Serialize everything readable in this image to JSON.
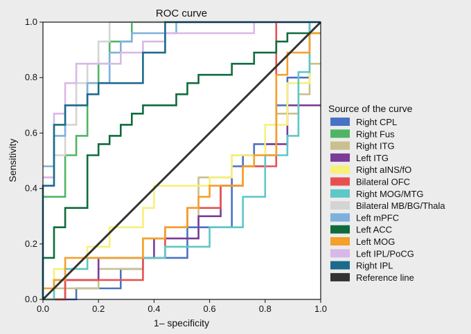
{
  "chart_data": {
    "type": "line",
    "title": "ROC curve",
    "xlabel": "1– specificity",
    "ylabel": "Sensitivity",
    "xlim": [
      0,
      1
    ],
    "ylim": [
      0,
      1
    ],
    "xticks": [
      "0.0",
      "0.2",
      "0.4",
      "0.6",
      "0.8",
      "1.0"
    ],
    "yticks": [
      "0.0",
      "0.2",
      "0.4",
      "0.6",
      "0.8",
      "1.0"
    ],
    "grid": false,
    "legend_title": "Source of the curve",
    "legend_position": "right",
    "series": [
      {
        "name": "Right CPL",
        "color": "#4a72c4",
        "points": [
          [
            0,
            0
          ],
          [
            0.12,
            0
          ],
          [
            0.12,
            0.04
          ],
          [
            0.28,
            0.04
          ],
          [
            0.28,
            0.11
          ],
          [
            0.36,
            0.11
          ],
          [
            0.36,
            0.15
          ],
          [
            0.52,
            0.15
          ],
          [
            0.52,
            0.26
          ],
          [
            0.68,
            0.26
          ],
          [
            0.68,
            0.48
          ],
          [
            0.72,
            0.48
          ],
          [
            0.72,
            0.52
          ],
          [
            0.76,
            0.52
          ],
          [
            0.76,
            0.56
          ],
          [
            0.84,
            0.56
          ],
          [
            0.84,
            0.7
          ],
          [
            0.88,
            0.7
          ],
          [
            0.88,
            0.8
          ],
          [
            0.96,
            0.8
          ],
          [
            0.96,
            1
          ],
          [
            1,
            1
          ]
        ]
      },
      {
        "name": "Right Fus",
        "color": "#4fb563",
        "points": [
          [
            0,
            0.37
          ],
          [
            0.08,
            0.37
          ],
          [
            0.08,
            0.52
          ],
          [
            0.12,
            0.52
          ],
          [
            0.12,
            0.59
          ],
          [
            0.16,
            0.59
          ],
          [
            0.16,
            0.78
          ],
          [
            0.2,
            0.78
          ],
          [
            0.2,
            0.85
          ],
          [
            0.24,
            0.85
          ],
          [
            0.24,
            0.93
          ],
          [
            0.32,
            0.93
          ],
          [
            0.32,
            1
          ],
          [
            1,
            1
          ]
        ]
      },
      {
        "name": "Right ITG",
        "color": "#c9c08e",
        "points": [
          [
            0,
            0
          ],
          [
            0.04,
            0
          ],
          [
            0.04,
            0.04
          ],
          [
            0.2,
            0.04
          ],
          [
            0.2,
            0.11
          ],
          [
            0.36,
            0.11
          ],
          [
            0.36,
            0.22
          ],
          [
            0.56,
            0.22
          ],
          [
            0.56,
            0.44
          ],
          [
            0.68,
            0.44
          ],
          [
            0.68,
            0.52
          ],
          [
            0.84,
            0.52
          ],
          [
            0.84,
            0.67
          ],
          [
            0.92,
            0.67
          ],
          [
            0.92,
            0.74
          ],
          [
            0.96,
            0.74
          ],
          [
            0.96,
            0.85
          ],
          [
            1,
            0.85
          ]
        ]
      },
      {
        "name": "Left ITG",
        "color": "#7b3c98",
        "points": [
          [
            0,
            0
          ],
          [
            0.08,
            0
          ],
          [
            0.08,
            0.07
          ],
          [
            0.2,
            0.07
          ],
          [
            0.2,
            0.15
          ],
          [
            0.4,
            0.15
          ],
          [
            0.4,
            0.22
          ],
          [
            0.56,
            0.22
          ],
          [
            0.56,
            0.3
          ],
          [
            0.64,
            0.3
          ],
          [
            0.64,
            0.41
          ],
          [
            0.72,
            0.41
          ],
          [
            0.72,
            0.48
          ],
          [
            0.8,
            0.48
          ],
          [
            0.8,
            0.56
          ],
          [
            0.88,
            0.56
          ],
          [
            0.88,
            0.7
          ],
          [
            1,
            0.7
          ]
        ]
      },
      {
        "name": "Right aINS/fO",
        "color": "#f7f07a",
        "points": [
          [
            0,
            0
          ],
          [
            0.04,
            0
          ],
          [
            0.04,
            0.11
          ],
          [
            0.16,
            0.11
          ],
          [
            0.16,
            0.19
          ],
          [
            0.24,
            0.19
          ],
          [
            0.24,
            0.26
          ],
          [
            0.36,
            0.26
          ],
          [
            0.36,
            0.33
          ],
          [
            0.4,
            0.33
          ],
          [
            0.4,
            0.41
          ],
          [
            0.6,
            0.41
          ],
          [
            0.6,
            0.44
          ],
          [
            0.68,
            0.44
          ],
          [
            0.68,
            0.52
          ],
          [
            0.8,
            0.52
          ],
          [
            0.8,
            0.63
          ],
          [
            0.88,
            0.63
          ],
          [
            0.88,
            0.78
          ],
          [
            0.96,
            0.78
          ],
          [
            0.96,
            0.96
          ],
          [
            1,
            0.96
          ]
        ]
      },
      {
        "name": "Bilateral OFC",
        "color": "#e85050",
        "points": [
          [
            0,
            0
          ],
          [
            0.08,
            0
          ],
          [
            0.08,
            0.07
          ],
          [
            0.36,
            0.07
          ],
          [
            0.36,
            0.15
          ],
          [
            0.44,
            0.15
          ],
          [
            0.44,
            0.26
          ],
          [
            0.52,
            0.26
          ],
          [
            0.52,
            0.33
          ],
          [
            0.64,
            0.33
          ],
          [
            0.64,
            0.41
          ],
          [
            0.72,
            0.41
          ],
          [
            0.72,
            0.48
          ],
          [
            0.84,
            0.48
          ],
          [
            0.84,
            1
          ],
          [
            1,
            1
          ]
        ]
      },
      {
        "name": "Right MOG/MTG",
        "color": "#5ec7c7",
        "points": [
          [
            0,
            0
          ],
          [
            0.04,
            0
          ],
          [
            0.04,
            0.07
          ],
          [
            0.08,
            0.07
          ],
          [
            0.08,
            0.11
          ],
          [
            0.16,
            0.11
          ],
          [
            0.16,
            0.15
          ],
          [
            0.44,
            0.15
          ],
          [
            0.44,
            0.19
          ],
          [
            0.6,
            0.19
          ],
          [
            0.6,
            0.26
          ],
          [
            0.72,
            0.26
          ],
          [
            0.72,
            0.37
          ],
          [
            0.8,
            0.37
          ],
          [
            0.8,
            0.52
          ],
          [
            0.88,
            0.52
          ],
          [
            0.88,
            0.59
          ],
          [
            0.92,
            0.59
          ],
          [
            0.92,
            0.82
          ],
          [
            0.96,
            0.82
          ],
          [
            0.96,
            1
          ],
          [
            1,
            1
          ]
        ]
      },
      {
        "name": "Bilateral MB/BG/Thala",
        "color": "#d4d4d4",
        "points": [
          [
            0,
            0.44
          ],
          [
            0.04,
            0.44
          ],
          [
            0.04,
            0.52
          ],
          [
            0.08,
            0.52
          ],
          [
            0.08,
            0.63
          ],
          [
            0.12,
            0.63
          ],
          [
            0.12,
            0.78
          ],
          [
            0.16,
            0.78
          ],
          [
            0.16,
            0.85
          ],
          [
            0.2,
            0.85
          ],
          [
            0.2,
            0.93
          ],
          [
            0.24,
            0.93
          ],
          [
            0.24,
            1
          ],
          [
            1,
            1
          ]
        ]
      },
      {
        "name": "Left mPFC",
        "color": "#7eb0dc",
        "points": [
          [
            0,
            0.48
          ],
          [
            0.04,
            0.48
          ],
          [
            0.04,
            0.59
          ],
          [
            0.08,
            0.59
          ],
          [
            0.08,
            0.7
          ],
          [
            0.16,
            0.7
          ],
          [
            0.16,
            0.78
          ],
          [
            0.24,
            0.78
          ],
          [
            0.24,
            0.89
          ],
          [
            0.28,
            0.89
          ],
          [
            0.28,
            0.93
          ],
          [
            0.32,
            0.93
          ],
          [
            0.32,
            0.96
          ],
          [
            0.48,
            0.96
          ],
          [
            0.48,
            1
          ],
          [
            1,
            1
          ]
        ]
      },
      {
        "name": "Left ACC",
        "color": "#0f6b3c",
        "points": [
          [
            0,
            0
          ],
          [
            0,
            0.15
          ],
          [
            0.04,
            0.15
          ],
          [
            0.04,
            0.26
          ],
          [
            0.08,
            0.26
          ],
          [
            0.08,
            0.33
          ],
          [
            0.16,
            0.33
          ],
          [
            0.16,
            0.52
          ],
          [
            0.2,
            0.52
          ],
          [
            0.2,
            0.56
          ],
          [
            0.24,
            0.56
          ],
          [
            0.24,
            0.59
          ],
          [
            0.28,
            0.59
          ],
          [
            0.28,
            0.63
          ],
          [
            0.32,
            0.63
          ],
          [
            0.32,
            0.67
          ],
          [
            0.36,
            0.67
          ],
          [
            0.36,
            0.7
          ],
          [
            0.48,
            0.7
          ],
          [
            0.48,
            0.74
          ],
          [
            0.52,
            0.74
          ],
          [
            0.52,
            0.78
          ],
          [
            0.56,
            0.78
          ],
          [
            0.56,
            0.81
          ],
          [
            0.68,
            0.81
          ],
          [
            0.68,
            0.85
          ],
          [
            0.76,
            0.85
          ],
          [
            0.76,
            0.89
          ],
          [
            0.84,
            0.89
          ],
          [
            0.84,
            0.93
          ],
          [
            0.88,
            0.93
          ],
          [
            0.88,
            0.96
          ],
          [
            1,
            0.96
          ]
        ]
      },
      {
        "name": "Left MOG",
        "color": "#f5a02a",
        "points": [
          [
            0,
            0.04
          ],
          [
            0.04,
            0.04
          ],
          [
            0.04,
            0.07
          ],
          [
            0.08,
            0.07
          ],
          [
            0.08,
            0.15
          ],
          [
            0.36,
            0.15
          ],
          [
            0.36,
            0.22
          ],
          [
            0.44,
            0.22
          ],
          [
            0.44,
            0.26
          ],
          [
            0.52,
            0.26
          ],
          [
            0.52,
            0.33
          ],
          [
            0.56,
            0.33
          ],
          [
            0.56,
            0.37
          ],
          [
            0.6,
            0.37
          ],
          [
            0.6,
            0.41
          ],
          [
            0.72,
            0.41
          ],
          [
            0.72,
            0.48
          ],
          [
            0.76,
            0.48
          ],
          [
            0.76,
            0.52
          ],
          [
            0.84,
            0.52
          ],
          [
            0.84,
            0.81
          ],
          [
            0.88,
            0.81
          ],
          [
            0.88,
            0.89
          ],
          [
            0.96,
            0.89
          ],
          [
            0.96,
            0.96
          ],
          [
            1,
            0.96
          ]
        ]
      },
      {
        "name": "Left IPL/PoCG",
        "color": "#d8b8e6",
        "points": [
          [
            0,
            0.44
          ],
          [
            0.04,
            0.44
          ],
          [
            0.04,
            0.67
          ],
          [
            0.08,
            0.67
          ],
          [
            0.08,
            0.78
          ],
          [
            0.12,
            0.78
          ],
          [
            0.12,
            0.85
          ],
          [
            0.28,
            0.85
          ],
          [
            0.28,
            0.89
          ],
          [
            0.36,
            0.89
          ],
          [
            0.36,
            0.93
          ],
          [
            0.44,
            0.93
          ],
          [
            0.44,
            0.96
          ],
          [
            0.76,
            0.96
          ],
          [
            0.76,
            1
          ],
          [
            1,
            1
          ]
        ]
      },
      {
        "name": "Right IPL",
        "color": "#1b6a8b",
        "points": [
          [
            0,
            0
          ],
          [
            0,
            0.41
          ],
          [
            0.04,
            0.41
          ],
          [
            0.04,
            0.63
          ],
          [
            0.08,
            0.63
          ],
          [
            0.08,
            0.7
          ],
          [
            0.16,
            0.7
          ],
          [
            0.16,
            0.74
          ],
          [
            0.2,
            0.74
          ],
          [
            0.2,
            0.78
          ],
          [
            0.36,
            0.78
          ],
          [
            0.36,
            0.89
          ],
          [
            0.44,
            0.89
          ],
          [
            0.44,
            1
          ],
          [
            1,
            1
          ]
        ]
      },
      {
        "name": "Reference line",
        "color": "#333333",
        "points": [
          [
            0,
            0
          ],
          [
            1,
            1
          ]
        ]
      }
    ]
  }
}
